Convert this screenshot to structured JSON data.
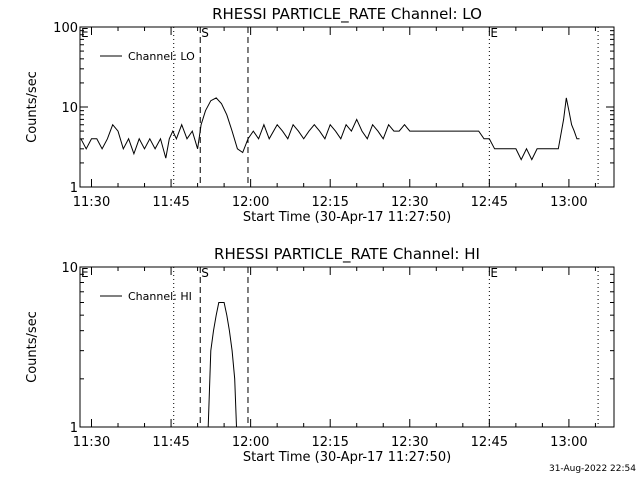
{
  "footer": {
    "timestamp": "31-Aug-2022 22:54"
  },
  "chart_data": [
    {
      "type": "line",
      "title": "RHESSI PARTICLE_RATE Channel: LO",
      "xlabel": "Start Time (30-Apr-17 11:27:50)",
      "ylabel": "Counts/sec",
      "yscale": "log",
      "ylim": [
        1,
        100
      ],
      "yticks": [
        1,
        10,
        100
      ],
      "yticklabels": [
        "1",
        "10",
        "100"
      ],
      "xlim": [
        "11:27:50",
        "13:08:30"
      ],
      "xticks": [
        "11:30",
        "11:45",
        "12:00",
        "12:15",
        "12:30",
        "12:45",
        "13:00"
      ],
      "legend": {
        "position": "top-left",
        "entries": [
          "Channel: LO"
        ]
      },
      "markers": [
        {
          "time": "11:45:30",
          "style": "dotted",
          "label": ""
        },
        {
          "time": "11:50:30",
          "style": "dashed",
          "label": "S"
        },
        {
          "time": "11:59:30",
          "style": "dashed",
          "label": ""
        },
        {
          "time": "12:45:00",
          "style": "dotted",
          "label": "E"
        },
        {
          "time": "13:05:30",
          "style": "dotted",
          "label": ""
        }
      ],
      "corner_labels": [
        "E"
      ],
      "series": [
        {
          "name": "Channel: LO",
          "x": [
            "11:28:00",
            "11:29:00",
            "11:30:00",
            "11:31:00",
            "11:32:00",
            "11:33:00",
            "11:34:00",
            "11:35:00",
            "11:36:00",
            "11:37:00",
            "11:38:00",
            "11:39:00",
            "11:40:00",
            "11:41:00",
            "11:42:00",
            "11:43:00",
            "11:44:00",
            "11:44:40",
            "11:45:20",
            "11:46:00",
            "11:47:00",
            "11:48:00",
            "11:49:00",
            "11:50:00",
            "11:50:40",
            "11:51:30",
            "11:52:30",
            "11:53:30",
            "11:54:30",
            "11:55:30",
            "11:56:30",
            "11:57:30",
            "11:58:30",
            "11:59:30",
            "12:00:30",
            "12:01:30",
            "12:02:30",
            "12:03:30",
            "12:05:00",
            "12:06:00",
            "12:07:00",
            "12:08:00",
            "12:09:00",
            "12:10:00",
            "12:11:00",
            "12:12:00",
            "12:13:00",
            "12:14:00",
            "12:15:00",
            "12:16:00",
            "12:17:00",
            "12:18:00",
            "12:19:00",
            "12:20:00",
            "12:21:00",
            "12:22:00",
            "12:23:00",
            "12:24:00",
            "12:25:00",
            "12:26:00",
            "12:27:00",
            "12:28:00",
            "12:29:00",
            "12:30:00",
            "12:32:00",
            "12:35:00",
            "12:38:00",
            "12:40:00",
            "12:41:00",
            "12:42:00",
            "12:43:00",
            "12:44:00",
            "12:45:00",
            "12:46:00",
            "12:47:00",
            "12:48:00",
            "12:49:00",
            "12:50:00",
            "12:51:00",
            "12:52:00",
            "12:53:00",
            "12:54:00",
            "12:55:00",
            "12:56:00",
            "12:58:00",
            "12:59:00",
            "12:59:30",
            "13:00:00",
            "13:00:30",
            "13:01:00",
            "13:01:30",
            "13:02:00"
          ],
          "y": [
            4,
            3,
            4,
            4,
            3,
            4,
            6,
            5,
            3,
            4,
            2.6,
            4,
            3,
            4,
            3,
            4,
            2.3,
            4,
            5,
            4,
            6,
            4,
            5,
            3,
            6,
            9,
            12,
            13,
            11,
            8,
            5,
            3,
            2.7,
            4,
            5,
            4,
            6,
            4,
            6,
            5,
            4,
            6,
            5,
            4,
            5,
            6,
            5,
            4,
            6,
            5,
            4,
            6,
            5,
            7,
            5,
            4,
            6,
            5,
            4,
            6,
            5,
            5,
            6,
            5,
            5,
            5,
            5,
            5,
            5,
            5,
            5,
            4,
            4,
            3,
            3,
            3,
            3,
            3,
            2.2,
            3,
            2.2,
            3,
            3,
            3,
            3,
            7,
            13,
            9,
            6,
            5,
            4,
            4
          ]
        }
      ]
    },
    {
      "type": "line",
      "title": "RHESSI PARTICLE_RATE Channel: HI",
      "xlabel": "Start Time (30-Apr-17 11:27:50)",
      "ylabel": "Counts/sec",
      "yscale": "log",
      "ylim": [
        1,
        10
      ],
      "yticks": [
        1,
        10
      ],
      "yticklabels": [
        "1",
        "10"
      ],
      "xlim": [
        "11:27:50",
        "13:08:30"
      ],
      "xticks": [
        "11:30",
        "11:45",
        "12:00",
        "12:15",
        "12:30",
        "12:45",
        "13:00"
      ],
      "legend": {
        "position": "top-left",
        "entries": [
          "Channel: HI"
        ]
      },
      "markers": [
        {
          "time": "11:45:30",
          "style": "dotted",
          "label": ""
        },
        {
          "time": "11:50:30",
          "style": "dashed",
          "label": "S"
        },
        {
          "time": "11:59:30",
          "style": "dashed",
          "label": ""
        },
        {
          "time": "12:45:00",
          "style": "dotted",
          "label": "E"
        },
        {
          "time": "13:05:30",
          "style": "dotted",
          "label": ""
        }
      ],
      "corner_labels": [
        "E"
      ],
      "series": [
        {
          "name": "Channel: HI",
          "x": [
            "11:52:00",
            "11:52:30",
            "11:53:00",
            "11:53:30",
            "11:54:00",
            "11:54:30",
            "11:55:00",
            "11:55:30",
            "11:56:00",
            "11:56:30",
            "11:57:00",
            "11:57:20"
          ],
          "y": [
            1,
            3,
            4,
            5,
            6,
            6,
            6,
            5,
            4,
            3,
            2,
            1
          ]
        }
      ]
    }
  ]
}
